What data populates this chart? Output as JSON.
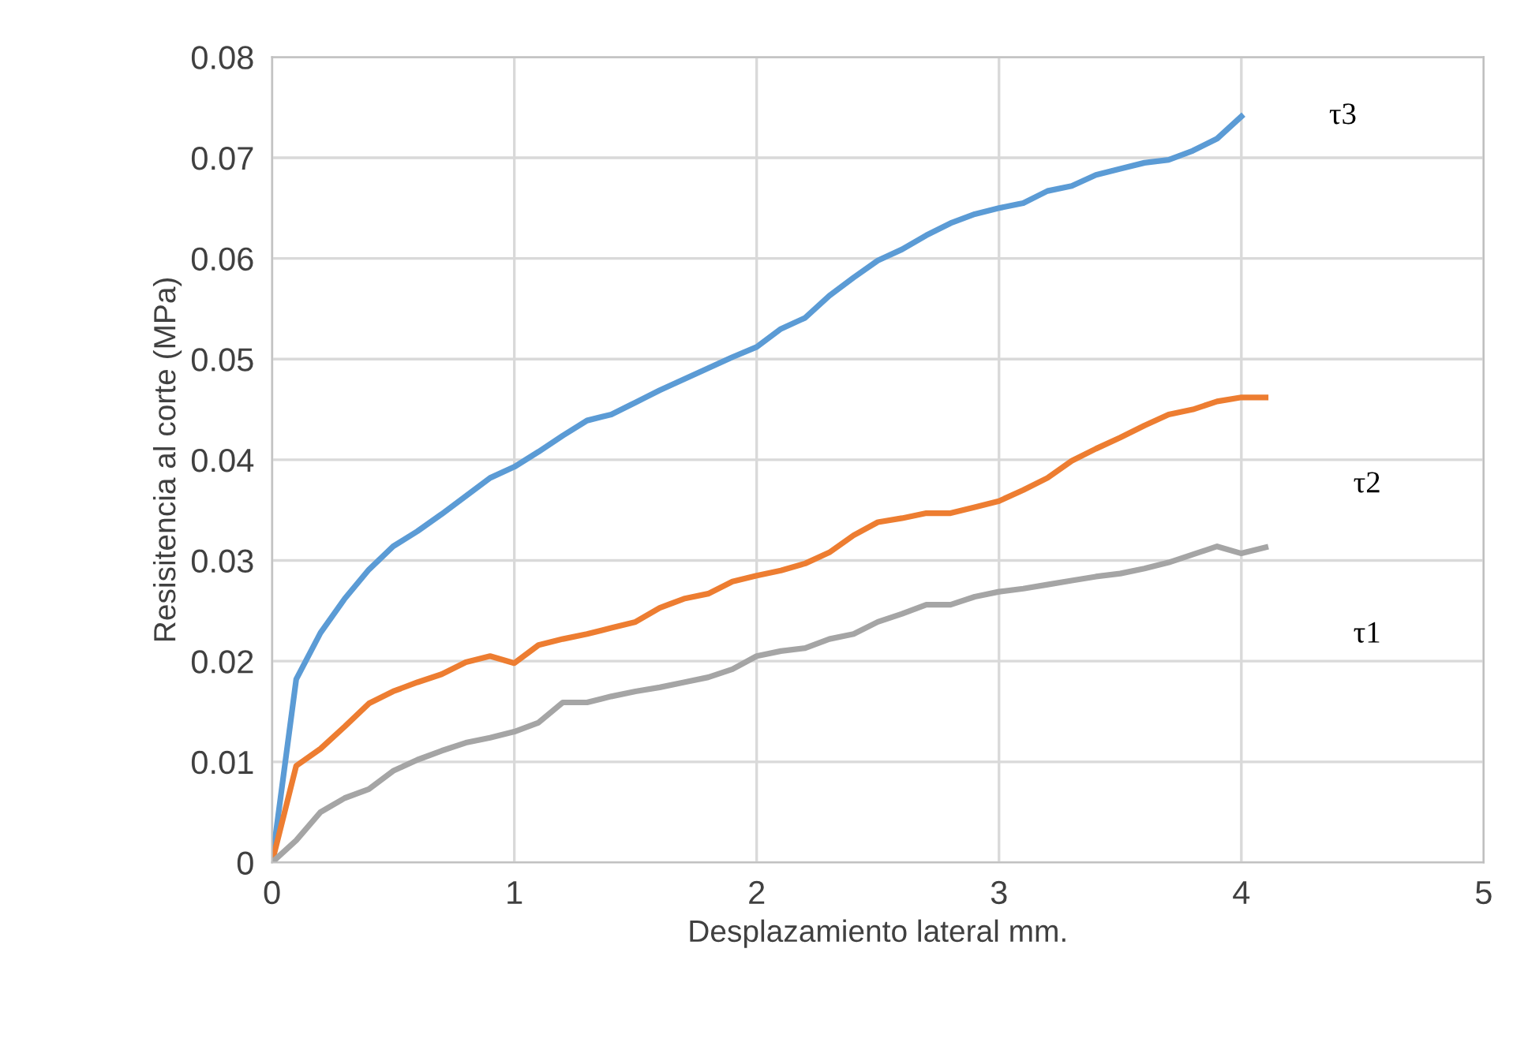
{
  "chart_data": {
    "type": "line",
    "xlabel": "Desplazamiento lateral mm.",
    "ylabel": "Resisitencia al corte (MPa)",
    "xlim": [
      0,
      5
    ],
    "ylim": [
      0,
      0.08
    ],
    "xticks": [
      0,
      1,
      2,
      3,
      4,
      5
    ],
    "yticks": [
      0,
      0.01,
      0.02,
      0.03,
      0.04,
      0.05,
      0.06,
      0.07,
      0.08
    ],
    "grid": true,
    "legend": false,
    "marker": "none",
    "line_style": "solid",
    "x": [
      0,
      0.1,
      0.2,
      0.3,
      0.4,
      0.5,
      0.6,
      0.7,
      0.8,
      0.9,
      1.0,
      1.1,
      1.2,
      1.3,
      1.4,
      1.5,
      1.6,
      1.7,
      1.8,
      1.9,
      2.0,
      2.1,
      2.2,
      2.3,
      2.4,
      2.5,
      2.6,
      2.7,
      2.8,
      2.9,
      3.0,
      3.1,
      3.2,
      3.3,
      3.4,
      3.5,
      3.6,
      3.7,
      3.8,
      3.9,
      4.0,
      4.1
    ],
    "series": [
      {
        "name": "τ3",
        "color": "#5b9bd5",
        "values": [
          0,
          0.0182,
          0.0228,
          0.0262,
          0.0291,
          0.0314,
          0.0329,
          0.0346,
          0.0364,
          0.0382,
          0.0393,
          0.0408,
          0.0424,
          0.0439,
          0.0445,
          0.0457,
          0.0469,
          0.048,
          0.0491,
          0.0502,
          0.0512,
          0.053,
          0.0541,
          0.0563,
          0.0581,
          0.0598,
          0.0609,
          0.0623,
          0.0635,
          0.0644,
          0.065,
          0.0655,
          0.0667,
          0.0672,
          0.0683,
          0.0689,
          0.0695,
          0.0698,
          0.0707,
          0.0719,
          0.0741,
          null
        ]
      },
      {
        "name": "τ2",
        "color": "#ed7d31",
        "values": [
          0,
          0.0096,
          0.0113,
          0.0135,
          0.0158,
          0.017,
          0.0179,
          0.0187,
          0.0199,
          0.0205,
          0.0198,
          0.0216,
          0.0222,
          0.0227,
          0.0233,
          0.0239,
          0.0253,
          0.0262,
          0.0267,
          0.0279,
          0.0285,
          0.029,
          0.0297,
          0.0308,
          0.0325,
          0.0338,
          0.0342,
          0.0347,
          0.0347,
          0.0353,
          0.0359,
          0.037,
          0.0382,
          0.0399,
          0.0411,
          0.0422,
          0.0434,
          0.0445,
          0.045,
          0.0458,
          0.0462,
          0.0462
        ]
      },
      {
        "name": "τ1",
        "color": "#a5a5a5",
        "values": [
          0,
          0.0022,
          0.005,
          0.0064,
          0.0073,
          0.0091,
          0.0102,
          0.0111,
          0.0119,
          0.0124,
          0.013,
          0.0139,
          0.0159,
          0.0159,
          0.0165,
          0.017,
          0.0174,
          0.0179,
          0.0184,
          0.0192,
          0.0205,
          0.021,
          0.0213,
          0.0222,
          0.0227,
          0.0239,
          0.0247,
          0.0256,
          0.0256,
          0.0264,
          0.0269,
          0.0272,
          0.0276,
          0.028,
          0.0284,
          0.0287,
          0.0292,
          0.0298,
          0.0306,
          0.0314,
          0.0307,
          0.0313
        ]
      }
    ]
  }
}
